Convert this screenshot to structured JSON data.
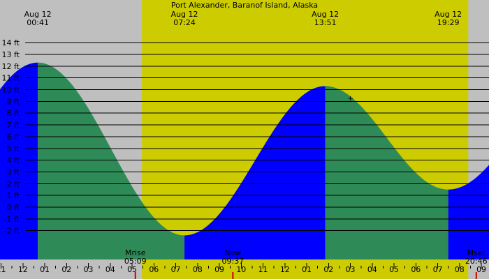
{
  "chart_data": {
    "type": "area",
    "title": "Port Alexander, Baranof Island, Alaska",
    "xlabel": "",
    "ylabel": "",
    "y_unit": "ft",
    "ylim": [
      -3,
      14.4
    ],
    "y_ticks": [
      14,
      13,
      12,
      11,
      10,
      9,
      8,
      7,
      6,
      5,
      4,
      3,
      2,
      1,
      0,
      -1,
      -2
    ],
    "y_tick_labels": [
      "14 ft",
      "13 ft",
      "12 ft",
      "11 ft",
      "10 ft",
      "9 ft",
      "8 ft",
      "7 ft",
      "6 ft",
      "5 ft",
      "4 ft",
      "3 ft",
      "2 ft",
      "1 ft",
      "0 ft",
      "-1 ft",
      "-2 ft"
    ],
    "x_unit": "hour of day",
    "xlim": [
      22.95,
      45.35
    ],
    "hour_ticks": [
      23,
      24,
      25,
      26,
      27,
      28,
      29,
      30,
      31,
      32,
      33,
      34,
      35,
      36,
      37,
      38,
      39,
      40,
      41,
      42,
      43,
      44,
      45
    ],
    "hour_tick_labels": [
      "11",
      "12",
      "01",
      "02",
      "03",
      "04",
      "05",
      "06",
      "07",
      "08",
      "09",
      "10",
      "11",
      "12",
      "01",
      "02",
      "03",
      "04",
      "05",
      "06",
      "07",
      "08",
      "09"
    ],
    "daylight": {
      "start": 29.45,
      "end": 44.4
    },
    "colors": {
      "day": "#cccc00",
      "night": "#bfbfbf",
      "rising": "#0000ff",
      "falling": "#2e8b57",
      "grid": "#000000"
    },
    "tides": [
      {
        "type": "high",
        "time": 24.683,
        "height": 12.3,
        "label_date": "Aug 12",
        "label_time": "00:41"
      },
      {
        "type": "low",
        "time": 31.4,
        "height": -2.4,
        "label_date": "Aug 12",
        "label_time": "07:24"
      },
      {
        "type": "high",
        "time": 37.85,
        "height": 10.3,
        "label_date": "Aug 12",
        "label_time": "13:51"
      },
      {
        "type": "low",
        "time": 43.483,
        "height": 1.5,
        "label_date": "Aug 12",
        "label_time": "19:29"
      }
    ],
    "tide_extension": {
      "start": {
        "time": 17.9,
        "height": -2.6
      },
      "end": {
        "time": 50.1,
        "height": 12.9
      }
    },
    "events": [
      {
        "name": "Mrise",
        "time_label": "05:09",
        "time": 29.15
      },
      {
        "name": "New",
        "time_label": "09:37",
        "time": 33.617
      },
      {
        "name": "Mset",
        "time_label": "20:46",
        "time": 44.767
      }
    ],
    "marker": {
      "symbol": "+",
      "time": 39.0,
      "height": 9.3
    }
  }
}
